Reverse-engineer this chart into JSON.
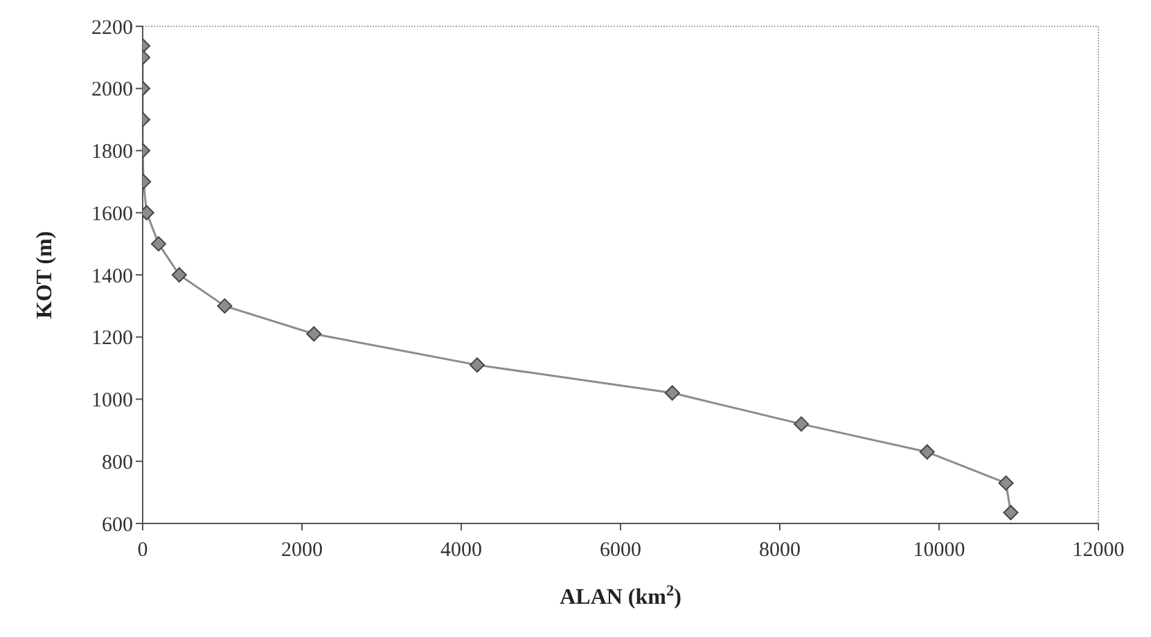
{
  "chart_data": {
    "type": "line",
    "xlabel": "ALAN (km$^{2}$)",
    "ylabel": "KOT (m)",
    "x": [
      0,
      0,
      0,
      0,
      0,
      10,
      50,
      200,
      460,
      1030,
      2150,
      4200,
      6650,
      8270,
      9850,
      10840,
      10900
    ],
    "series": [
      {
        "color": "#8c8c8c",
        "values": [
          2137,
          2100,
          2000,
          1900,
          1800,
          1700,
          1600,
          1500,
          1400,
          1300,
          1210,
          1110,
          1020,
          920,
          830,
          730,
          635
        ]
      }
    ],
    "xlim": [
      0,
      12000
    ],
    "xticks": [
      0,
      2000,
      4000,
      6000,
      8000,
      10000,
      12000
    ],
    "ylim": [
      600,
      2200
    ],
    "yticks": [
      600,
      800,
      1000,
      1200,
      1400,
      1600,
      1800,
      2000,
      2200
    ],
    "grid": false,
    "marker": "diamond",
    "line_style": "solid"
  }
}
